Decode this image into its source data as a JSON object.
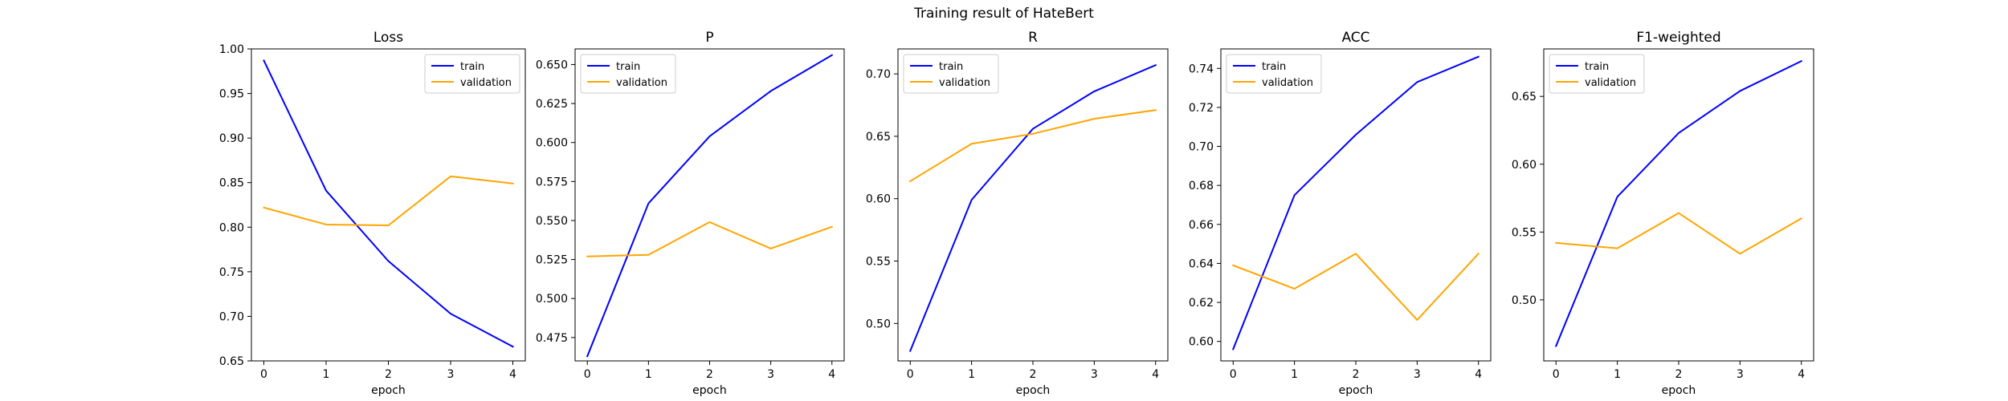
{
  "figure": {
    "suptitle": "Training result of HateBert"
  },
  "chart_data": [
    {
      "type": "line",
      "title": "Loss",
      "xlabel": "epoch",
      "ylabel": "",
      "x": [
        0,
        1,
        2,
        3,
        4
      ],
      "xticks": [
        "0",
        "1",
        "2",
        "3",
        "4"
      ],
      "ylim": [
        0.65,
        1.0
      ],
      "yticks": [
        "0.65",
        "0.70",
        "0.75",
        "0.80",
        "0.85",
        "0.90",
        "0.95",
        "1.00"
      ],
      "legend_position": "upper-right",
      "series": [
        {
          "name": "train",
          "color": "#0000ff",
          "values": [
            0.987,
            0.841,
            0.762,
            0.703,
            0.666
          ]
        },
        {
          "name": "validation",
          "color": "#ffa500",
          "values": [
            0.822,
            0.803,
            0.802,
            0.857,
            0.849
          ]
        }
      ]
    },
    {
      "type": "line",
      "title": "P",
      "xlabel": "epoch",
      "ylabel": "",
      "x": [
        0,
        1,
        2,
        3,
        4
      ],
      "xticks": [
        "0",
        "1",
        "2",
        "3",
        "4"
      ],
      "ylim": [
        0.46,
        0.66
      ],
      "yticks": [
        "0.475",
        "0.500",
        "0.525",
        "0.550",
        "0.575",
        "0.600",
        "0.625",
        "0.650"
      ],
      "legend_position": "upper-left",
      "series": [
        {
          "name": "train",
          "color": "#0000ff",
          "values": [
            0.463,
            0.561,
            0.604,
            0.633,
            0.656
          ]
        },
        {
          "name": "validation",
          "color": "#ffa500",
          "values": [
            0.527,
            0.528,
            0.549,
            0.532,
            0.546
          ]
        }
      ]
    },
    {
      "type": "line",
      "title": "R",
      "xlabel": "epoch",
      "ylabel": "",
      "x": [
        0,
        1,
        2,
        3,
        4
      ],
      "xticks": [
        "0",
        "1",
        "2",
        "3",
        "4"
      ],
      "ylim": [
        0.47,
        0.72
      ],
      "yticks": [
        "0.50",
        "0.55",
        "0.60",
        "0.65",
        "0.70"
      ],
      "legend_position": "upper-left",
      "series": [
        {
          "name": "train",
          "color": "#0000ff",
          "values": [
            0.478,
            0.599,
            0.656,
            0.686,
            0.707
          ]
        },
        {
          "name": "validation",
          "color": "#ffa500",
          "values": [
            0.614,
            0.644,
            0.652,
            0.664,
            0.671
          ]
        }
      ]
    },
    {
      "type": "line",
      "title": "ACC",
      "xlabel": "epoch",
      "ylabel": "",
      "x": [
        0,
        1,
        2,
        3,
        4
      ],
      "xticks": [
        "0",
        "1",
        "2",
        "3",
        "4"
      ],
      "ylim": [
        0.59,
        0.75
      ],
      "yticks": [
        "0.60",
        "0.62",
        "0.64",
        "0.66",
        "0.68",
        "0.70",
        "0.72",
        "0.74"
      ],
      "legend_position": "upper-left",
      "series": [
        {
          "name": "train",
          "color": "#0000ff",
          "values": [
            0.596,
            0.675,
            0.706,
            0.733,
            0.746
          ]
        },
        {
          "name": "validation",
          "color": "#ffa500",
          "values": [
            0.639,
            0.627,
            0.645,
            0.611,
            0.645
          ]
        }
      ]
    },
    {
      "type": "line",
      "title": "F1-weighted",
      "xlabel": "epoch",
      "ylabel": "",
      "x": [
        0,
        1,
        2,
        3,
        4
      ],
      "xticks": [
        "0",
        "1",
        "2",
        "3",
        "4"
      ],
      "ylim": [
        0.455,
        0.685
      ],
      "yticks": [
        "0.50",
        "0.55",
        "0.60",
        "0.65"
      ],
      "legend_position": "upper-left",
      "series": [
        {
          "name": "train",
          "color": "#0000ff",
          "values": [
            0.466,
            0.576,
            0.623,
            0.654,
            0.676
          ]
        },
        {
          "name": "validation",
          "color": "#ffa500",
          "values": [
            0.542,
            0.538,
            0.564,
            0.534,
            0.56
          ]
        }
      ]
    }
  ]
}
